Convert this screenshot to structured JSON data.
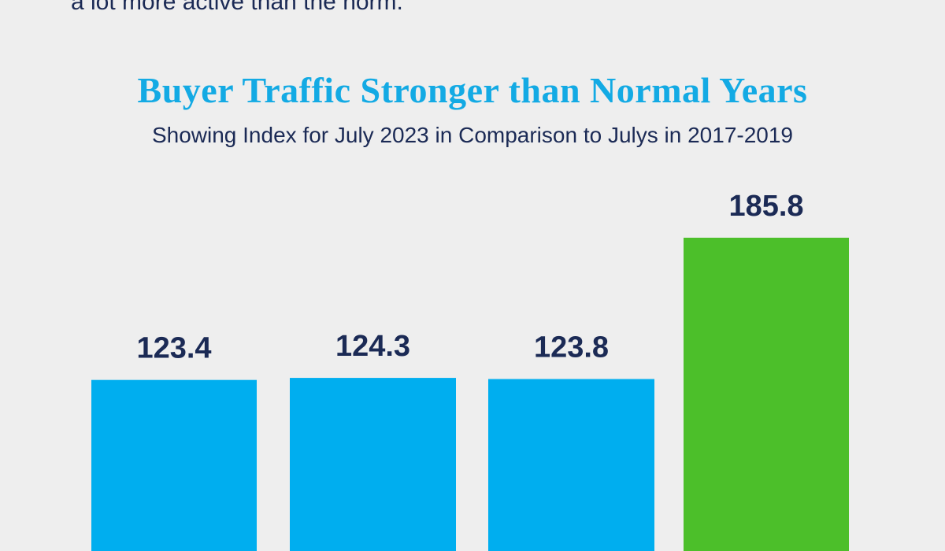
{
  "header": {
    "top_text": "a lot more active than the norm."
  },
  "colors": {
    "background": "#eeeeee",
    "title": "#13aae4",
    "text_dark": "#1b2a55",
    "bar_blue": "#00aeef",
    "bar_green": "#4cbf2a"
  },
  "chart_data": {
    "type": "bar",
    "title": "Buyer Traffic Stronger than Normal Years",
    "subtitle": "Showing Index for July 2023 in Comparison to Julys in 2017-2019",
    "xlabel": "",
    "ylabel": "",
    "grid": false,
    "legend": "none",
    "values": [
      123.4,
      124.3,
      123.8,
      185.8
    ],
    "value_labels": [
      "123.4",
      "124.3",
      "123.8",
      "185.8"
    ],
    "bar_colors": [
      "#00aeef",
      "#00aeef",
      "#00aeef",
      "#4cbf2a"
    ]
  }
}
